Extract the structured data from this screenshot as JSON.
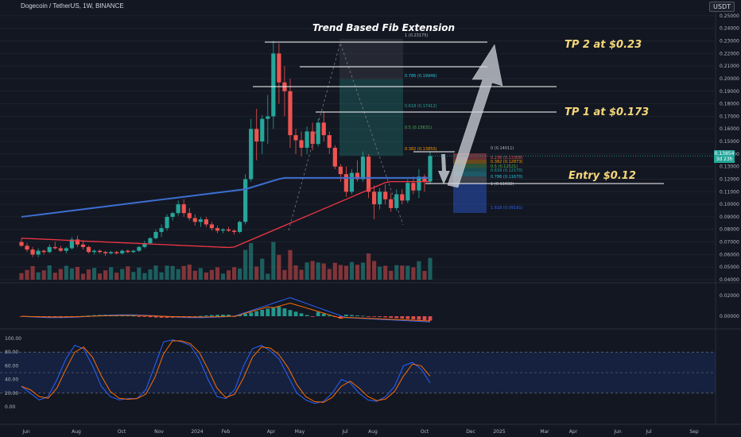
{
  "header": {
    "symbol": "Dogecoin / TetherUS, 1W, BINANCE",
    "currency": "USDT"
  },
  "annotations": {
    "fib_title": "Trend Based Fib Extension",
    "tp2": "TP 2 at $0.23",
    "tp1": "TP 1 at $0.173",
    "entry": "Entry $0.12"
  },
  "price_tag": {
    "price": "0.13854",
    "countdown": "3d 23h"
  },
  "price_axis": [
    "0.25000",
    "0.24000",
    "0.23000",
    "0.22000",
    "0.21000",
    "0.20000",
    "0.19000",
    "0.18000",
    "0.17000",
    "0.16000",
    "0.15000",
    "0.14000",
    "0.13000",
    "0.12000",
    "0.11000",
    "0.10000",
    "0.09000",
    "0.08000",
    "0.07000",
    "0.06000",
    "0.05000",
    "0.04000"
  ],
  "macd_axis": [
    "0.02000",
    "0.00000"
  ],
  "stoch_axis": [
    "100.00",
    "80.00",
    "60.00",
    "40.00",
    "20.00",
    "0.00"
  ],
  "time_axis": [
    "Jun",
    "Aug",
    "Oct",
    "Nov",
    "2024",
    "Feb",
    "Apr",
    "May",
    "Jul",
    "Aug",
    "Oct",
    "Dec",
    "2025",
    "Mar",
    "Apr",
    "Jun",
    "Jul",
    "Sep"
  ],
  "fib_levels": [
    {
      "label": "1 (0.23175)",
      "color": "#b2b5be"
    },
    {
      "label": "0.786 (0.19946)",
      "color": "#26c6da"
    },
    {
      "label": "0.618 (0.17412)",
      "color": "#26a69a"
    },
    {
      "label": "0.5 (0.15631)",
      "color": "#4caf50"
    },
    {
      "label": "0.382 (0.13850)",
      "color": "#ff9800"
    },
    {
      "label": "0 (0.14011)",
      "color": "#b2b5be"
    },
    {
      "label": "0.236 (0.13308)",
      "color": "#ef5350"
    },
    {
      "label": "0.382 (0.12873)",
      "color": "#ff9800"
    },
    {
      "label": "0.5 (0.12521)",
      "color": "#4caf50"
    },
    {
      "label": "0.618 (0.12170)",
      "color": "#26a69a"
    },
    {
      "label": "0.786 (0.11670)",
      "color": "#26c6da"
    },
    {
      "label": "1 (0.11032)",
      "color": "#b2b5be"
    },
    {
      "label": "1.618 (0.09191)",
      "color": "#2962ff"
    }
  ],
  "chart_data": {
    "type": "candlestick",
    "title": "Dogecoin / TetherUS, 1W, BINANCE",
    "ylim": [
      0.04,
      0.255
    ],
    "candles": [
      [
        0.07,
        0.073,
        0.066,
        0.067
      ],
      [
        0.067,
        0.069,
        0.062,
        0.064
      ],
      [
        0.064,
        0.066,
        0.058,
        0.06
      ],
      [
        0.06,
        0.065,
        0.058,
        0.063
      ],
      [
        0.063,
        0.064,
        0.06,
        0.062
      ],
      [
        0.062,
        0.068,
        0.061,
        0.066
      ],
      [
        0.066,
        0.07,
        0.064,
        0.065
      ],
      [
        0.065,
        0.067,
        0.062,
        0.063
      ],
      [
        0.063,
        0.066,
        0.061,
        0.065
      ],
      [
        0.065,
        0.074,
        0.064,
        0.072
      ],
      [
        0.072,
        0.075,
        0.066,
        0.068
      ],
      [
        0.068,
        0.071,
        0.064,
        0.066
      ],
      [
        0.066,
        0.067,
        0.061,
        0.062
      ],
      [
        0.062,
        0.064,
        0.06,
        0.063
      ],
      [
        0.063,
        0.064,
        0.061,
        0.062
      ],
      [
        0.062,
        0.063,
        0.059,
        0.061
      ],
      [
        0.061,
        0.063,
        0.06,
        0.062
      ],
      [
        0.062,
        0.063,
        0.06,
        0.061
      ],
      [
        0.061,
        0.064,
        0.06,
        0.063
      ],
      [
        0.063,
        0.064,
        0.061,
        0.062
      ],
      [
        0.062,
        0.064,
        0.061,
        0.063
      ],
      [
        0.063,
        0.067,
        0.062,
        0.066
      ],
      [
        0.066,
        0.071,
        0.065,
        0.069
      ],
      [
        0.069,
        0.074,
        0.068,
        0.073
      ],
      [
        0.073,
        0.08,
        0.072,
        0.078
      ],
      [
        0.078,
        0.084,
        0.074,
        0.081
      ],
      [
        0.081,
        0.092,
        0.079,
        0.09
      ],
      [
        0.09,
        0.094,
        0.087,
        0.093
      ],
      [
        0.093,
        0.103,
        0.091,
        0.1
      ],
      [
        0.1,
        0.104,
        0.09,
        0.093
      ],
      [
        0.093,
        0.097,
        0.087,
        0.089
      ],
      [
        0.089,
        0.092,
        0.083,
        0.086
      ],
      [
        0.086,
        0.09,
        0.082,
        0.088
      ],
      [
        0.088,
        0.09,
        0.082,
        0.084
      ],
      [
        0.084,
        0.086,
        0.079,
        0.081
      ],
      [
        0.081,
        0.083,
        0.077,
        0.079
      ],
      [
        0.079,
        0.081,
        0.077,
        0.08
      ],
      [
        0.08,
        0.082,
        0.078,
        0.079
      ],
      [
        0.079,
        0.08,
        0.076,
        0.078
      ],
      [
        0.078,
        0.087,
        0.077,
        0.086
      ],
      [
        0.086,
        0.124,
        0.084,
        0.12
      ],
      [
        0.12,
        0.168,
        0.118,
        0.16
      ],
      [
        0.16,
        0.176,
        0.135,
        0.15
      ],
      [
        0.15,
        0.171,
        0.14,
        0.168
      ],
      [
        0.168,
        0.187,
        0.148,
        0.17
      ],
      [
        0.17,
        0.23,
        0.16,
        0.22
      ],
      [
        0.22,
        0.228,
        0.18,
        0.197
      ],
      [
        0.197,
        0.21,
        0.17,
        0.19
      ],
      [
        0.19,
        0.2,
        0.145,
        0.155
      ],
      [
        0.155,
        0.16,
        0.14,
        0.151
      ],
      [
        0.151,
        0.158,
        0.138,
        0.145
      ],
      [
        0.145,
        0.162,
        0.14,
        0.158
      ],
      [
        0.158,
        0.165,
        0.143,
        0.148
      ],
      [
        0.148,
        0.168,
        0.146,
        0.165
      ],
      [
        0.165,
        0.174,
        0.15,
        0.155
      ],
      [
        0.155,
        0.158,
        0.14,
        0.145
      ],
      [
        0.145,
        0.147,
        0.128,
        0.13
      ],
      [
        0.13,
        0.132,
        0.118,
        0.124
      ],
      [
        0.124,
        0.13,
        0.106,
        0.11
      ],
      [
        0.11,
        0.128,
        0.108,
        0.125
      ],
      [
        0.125,
        0.135,
        0.118,
        0.12
      ],
      [
        0.12,
        0.142,
        0.118,
        0.138
      ],
      [
        0.138,
        0.14,
        0.105,
        0.11
      ],
      [
        0.11,
        0.115,
        0.088,
        0.1
      ],
      [
        0.1,
        0.113,
        0.096,
        0.11
      ],
      [
        0.11,
        0.116,
        0.1,
        0.104
      ],
      [
        0.104,
        0.109,
        0.094,
        0.097
      ],
      [
        0.097,
        0.112,
        0.095,
        0.108
      ],
      [
        0.108,
        0.112,
        0.1,
        0.103
      ],
      [
        0.103,
        0.12,
        0.101,
        0.117
      ],
      [
        0.117,
        0.122,
        0.108,
        0.111
      ],
      [
        0.111,
        0.128,
        0.105,
        0.122
      ],
      [
        0.122,
        0.124,
        0.11,
        0.118
      ],
      [
        0.118,
        0.142,
        0.116,
        0.1385
      ]
    ]
  }
}
